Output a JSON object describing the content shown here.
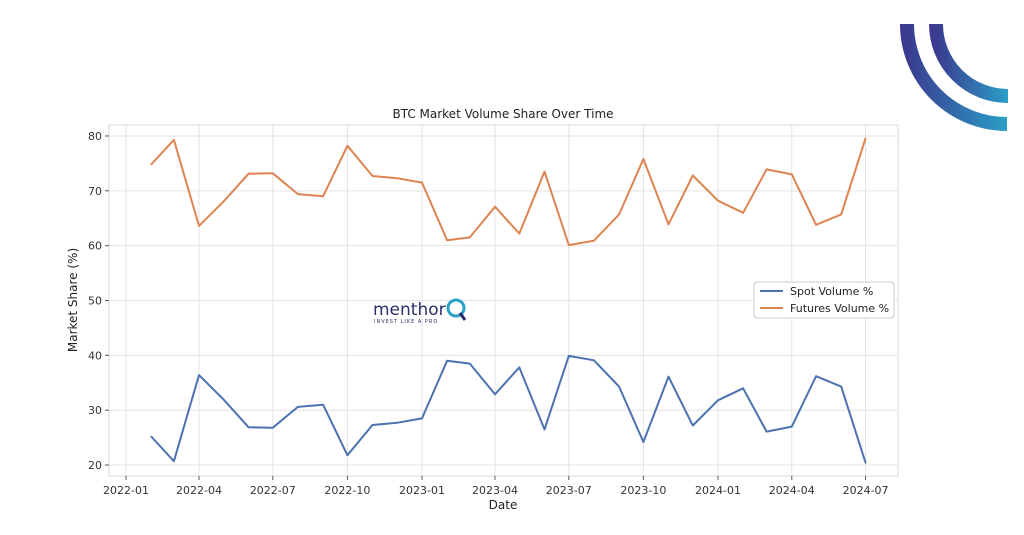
{
  "brand": {
    "name": "menthor",
    "tagline": "INVEST LIKE A PRO",
    "colors": {
      "dark": "#3b3b8f",
      "light": "#2a9fc8"
    }
  },
  "chart_data": {
    "type": "line",
    "title": "BTC Market Volume Share Over Time",
    "xlabel": "Date",
    "ylabel": "Market Share (%)",
    "x_ticks": [
      "2022-01",
      "2022-04",
      "2022-07",
      "2022-10",
      "2023-01",
      "2023-04",
      "2023-07",
      "2023-10",
      "2024-01",
      "2024-04",
      "2024-07"
    ],
    "y_ticks": [
      20,
      30,
      40,
      50,
      60,
      70,
      80
    ],
    "xlim": [
      "2021-12-11",
      "2024-08-10"
    ],
    "ylim": [
      18,
      82
    ],
    "grid": true,
    "legend_position": "center-right",
    "x": [
      "2022-02-01",
      "2022-03-01",
      "2022-04-01",
      "2022-05-01",
      "2022-06-01",
      "2022-07-01",
      "2022-08-01",
      "2022-09-01",
      "2022-10-01",
      "2022-11-01",
      "2022-12-01",
      "2023-01-01",
      "2023-02-01",
      "2023-03-01",
      "2023-04-01",
      "2023-05-01",
      "2023-06-01",
      "2023-07-01",
      "2023-08-01",
      "2023-09-01",
      "2023-10-01",
      "2023-11-01",
      "2023-12-01",
      "2024-01-01",
      "2024-02-01",
      "2024-03-01",
      "2024-04-01",
      "2024-05-01",
      "2024-06-01",
      "2024-07-01"
    ],
    "series": [
      {
        "name": "Spot Volume %",
        "color": "#4c72b0",
        "values": [
          25.2,
          20.7,
          36.4,
          32.0,
          26.9,
          26.8,
          30.6,
          31.0,
          21.8,
          27.3,
          27.7,
          28.5,
          39.0,
          38.5,
          32.9,
          37.8,
          26.5,
          39.9,
          39.1,
          34.3,
          24.2,
          36.1,
          27.2,
          31.8,
          34.0,
          26.1,
          27.0,
          36.2,
          34.3,
          20.4
        ]
      },
      {
        "name": "Futures Volume %",
        "color": "#dd8452",
        "values": [
          74.8,
          79.3,
          63.6,
          68.0,
          73.1,
          73.2,
          69.4,
          69.0,
          78.2,
          72.7,
          72.3,
          71.5,
          61.0,
          61.5,
          67.1,
          62.2,
          73.5,
          60.1,
          60.9,
          65.7,
          75.8,
          63.9,
          72.8,
          68.2,
          66.0,
          73.9,
          73.0,
          63.8,
          65.7,
          79.6
        ]
      }
    ]
  }
}
